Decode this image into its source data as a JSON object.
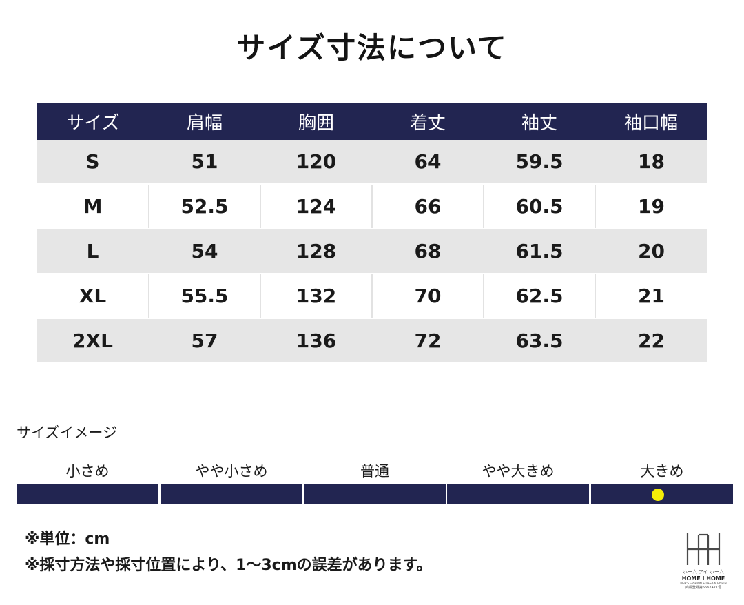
{
  "title": "サイズ寸法について",
  "table": {
    "headers": [
      "サイズ",
      "肩幅",
      "胸囲",
      "着丈",
      "袖丈",
      "袖口幅"
    ],
    "rows": [
      [
        "S",
        "51",
        "120",
        "64",
        "59.5",
        "18"
      ],
      [
        "M",
        "52.5",
        "124",
        "66",
        "60.5",
        "19"
      ],
      [
        "L",
        "54",
        "128",
        "68",
        "61.5",
        "20"
      ],
      [
        "XL",
        "55.5",
        "132",
        "70",
        "62.5",
        "21"
      ],
      [
        "2XL",
        "57",
        "136",
        "72",
        "63.5",
        "22"
      ]
    ]
  },
  "size_image": {
    "label": "サイズイメージ",
    "scale": [
      "小さめ",
      "やや小さめ",
      "普通",
      "やや大きめ",
      "大きめ"
    ],
    "selected_index": 4,
    "bar_color": "#222551",
    "marker_color": "#f4ec08"
  },
  "notes": [
    "※単位：cm",
    "※採寸方法や採寸位置により、1～3cmの誤差があります。"
  ],
  "logo": {
    "kana": "ホーム アイ ホーム",
    "name": "HOME I HOME",
    "tagline": "MEN'S FASHION & DESIGN BY HIH",
    "trademark": "商標登録第5667471号"
  }
}
